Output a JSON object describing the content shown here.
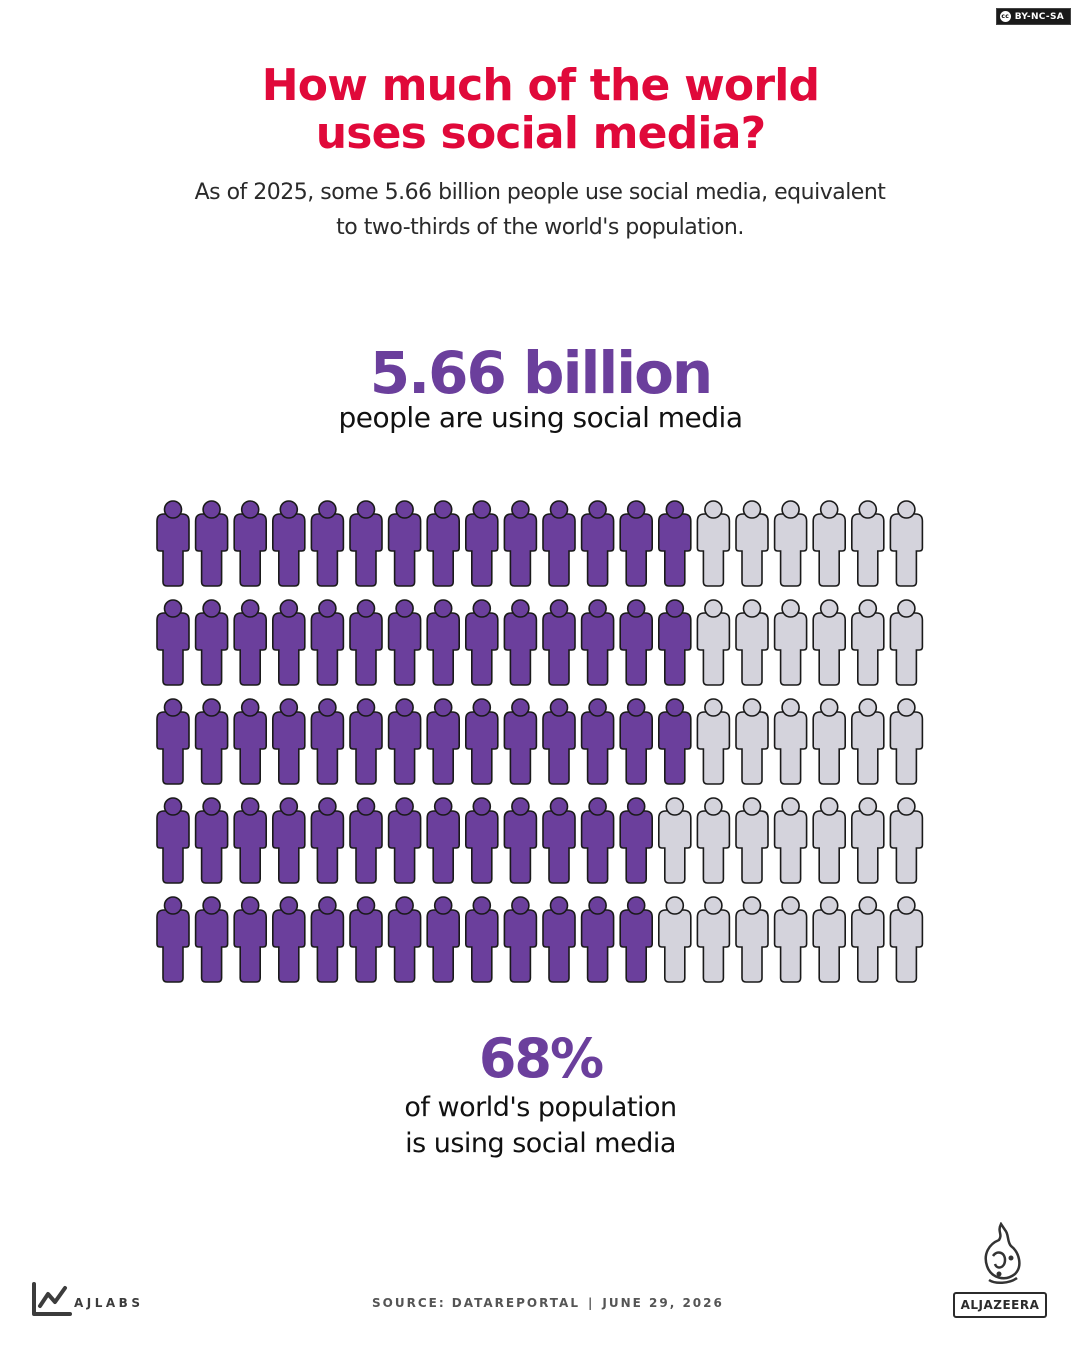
{
  "license": {
    "text": "BY-NC-SA",
    "icon": "creative-commons-icon"
  },
  "header": {
    "title_line1": "How much of the world",
    "title_line2": "uses social media?",
    "subtitle_line1": "As of 2025, some 5.66 billion people use social media, equivalent",
    "subtitle_line2": "to two-thirds of the world's population."
  },
  "stat_billion": {
    "value": "5.66 billion",
    "caption": "people are using social media"
  },
  "stat_percent": {
    "value": "68%",
    "caption_line1": "of world's population",
    "caption_line2": "is using social media"
  },
  "footer": {
    "brand": "AJLABS",
    "source": "SOURCE:  DATAREPORTAL",
    "date": "JUNE 29, 2026",
    "separator": "|",
    "network": "ALJAZEERA"
  },
  "chart_data": {
    "type": "pictogram",
    "rows": 5,
    "cols": 20,
    "total_icons": 100,
    "filled_per_row": [
      14,
      14,
      14,
      13,
      13
    ],
    "filled_count": 68,
    "value_percent": 68,
    "filled_color": "#6b3f9c",
    "empty_color": "#d4d3dc",
    "outline_color": "#1a1a1a",
    "icon": "person-icon"
  }
}
